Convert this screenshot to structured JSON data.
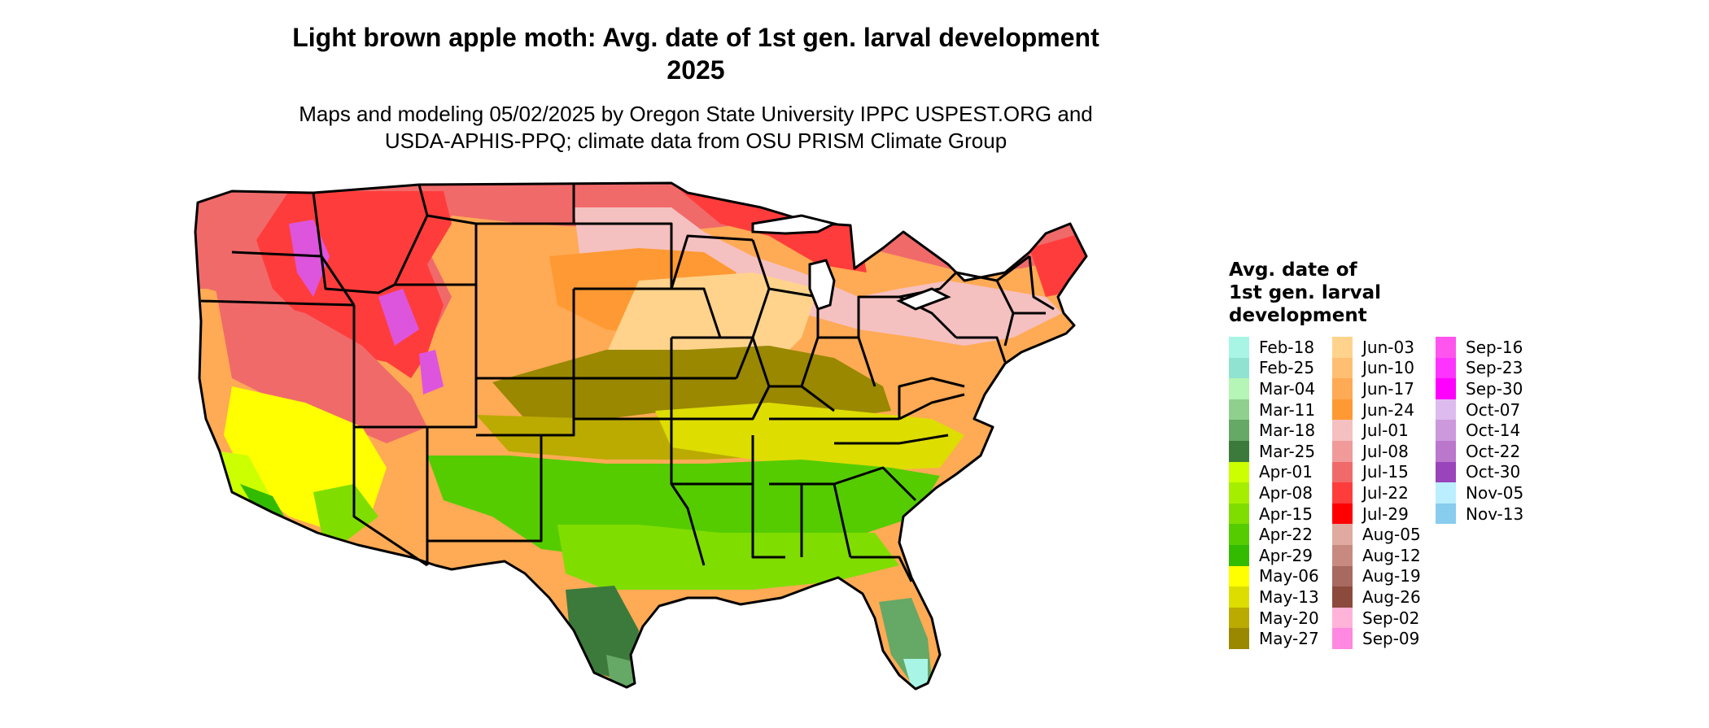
{
  "title": {
    "line1": "Light brown apple moth: Avg. date of 1st gen. larval development",
    "line2": "2025"
  },
  "subtitle": {
    "line1": "Maps and modeling 05/02/2025 by Oregon State University IPPC USPEST.ORG and",
    "line2": "USDA-APHIS-PPQ; climate data from OSU PRISM Climate Group"
  },
  "legend": {
    "title_lines": [
      "Avg. date of",
      "1st gen. larval",
      "development"
    ],
    "columns": [
      [
        {
          "label": "Feb-18",
          "color": "#a8f5e6"
        },
        {
          "label": "Feb-25",
          "color": "#8fe3d0"
        },
        {
          "label": "Mar-04",
          "color": "#b5f5b5"
        },
        {
          "label": "Mar-11",
          "color": "#8fd08f"
        },
        {
          "label": "Mar-18",
          "color": "#66a866"
        },
        {
          "label": "Mar-25",
          "color": "#3c7a3c"
        },
        {
          "label": "Apr-01",
          "color": "#ccff00"
        },
        {
          "label": "Apr-08",
          "color": "#a6ee00"
        },
        {
          "label": "Apr-15",
          "color": "#80dd00"
        },
        {
          "label": "Apr-22",
          "color": "#55cc00"
        },
        {
          "label": "Apr-29",
          "color": "#33bb00"
        },
        {
          "label": "May-06",
          "color": "#ffff00"
        },
        {
          "label": "May-13",
          "color": "#dddd00"
        },
        {
          "label": "May-20",
          "color": "#bbaa00"
        },
        {
          "label": "May-27",
          "color": "#998800"
        }
      ],
      [
        {
          "label": "Jun-03",
          "color": "#ffd38c"
        },
        {
          "label": "Jun-10",
          "color": "#ffbf73"
        },
        {
          "label": "Jun-17",
          "color": "#ffaa55"
        },
        {
          "label": "Jun-24",
          "color": "#ff9933"
        },
        {
          "label": "Jul-01",
          "color": "#f5c0c0"
        },
        {
          "label": "Jul-08",
          "color": "#f09a9a"
        },
        {
          "label": "Jul-15",
          "color": "#f06a6a"
        },
        {
          "label": "Jul-22",
          "color": "#ff3c3c"
        },
        {
          "label": "Jul-29",
          "color": "#ff0000"
        },
        {
          "label": "Aug-05",
          "color": "#e0aaa0"
        },
        {
          "label": "Aug-12",
          "color": "#c88a80"
        },
        {
          "label": "Aug-19",
          "color": "#a86a60"
        },
        {
          "label": "Aug-26",
          "color": "#8c4a3c"
        },
        {
          "label": "Sep-02",
          "color": "#ffb3d9"
        },
        {
          "label": "Sep-09",
          "color": "#ff88e0"
        }
      ],
      [
        {
          "label": "Sep-16",
          "color": "#ff55ee"
        },
        {
          "label": "Sep-23",
          "color": "#ff33ff"
        },
        {
          "label": "Sep-30",
          "color": "#ff00ff"
        },
        {
          "label": "Oct-07",
          "color": "#ddbbee"
        },
        {
          "label": "Oct-14",
          "color": "#cc99dd"
        },
        {
          "label": "Oct-22",
          "color": "#bb77cc"
        },
        {
          "label": "Oct-30",
          "color": "#9944bb"
        },
        {
          "label": "Nov-05",
          "color": "#bbeeff"
        },
        {
          "label": "Nov-13",
          "color": "#88ccee"
        }
      ]
    ]
  }
}
